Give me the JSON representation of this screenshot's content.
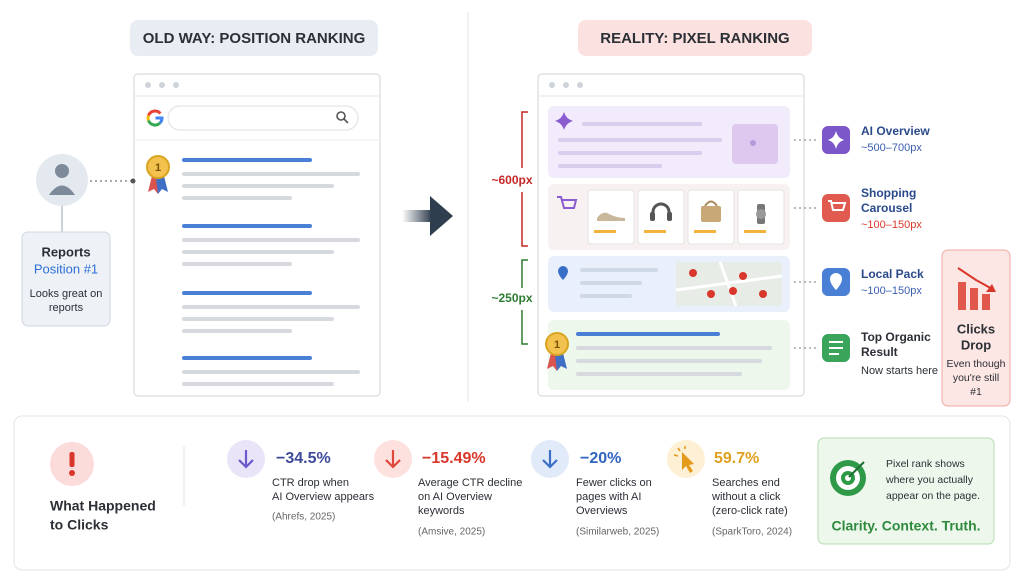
{
  "left": {
    "title": "OLD WAY: POSITION RANKING",
    "reports": {
      "heading": "Reports",
      "position": "Position #1",
      "note": [
        "Looks great on",
        "reports"
      ]
    },
    "medal": "1"
  },
  "right": {
    "title": "REALITY: PIXEL RANKING",
    "brackets": [
      "~600px",
      "~250px"
    ],
    "medal": "1",
    "legend": [
      {
        "label": [
          "AI Overview"
        ],
        "detail": "~500–700px"
      },
      {
        "label": [
          "Shopping",
          "Carousel"
        ],
        "detail": "~100–150px"
      },
      {
        "label": [
          "Local Pack"
        ],
        "detail": "~100–150px"
      },
      {
        "label": [
          "Top Organic",
          "Result"
        ],
        "detail": "Now starts here"
      }
    ],
    "clicks_drop": {
      "title": [
        "Clicks",
        "Drop"
      ],
      "note": [
        "Even though",
        "you're still",
        "#1"
      ]
    }
  },
  "bottom": {
    "title": [
      "What Happened",
      "to Clicks"
    ],
    "stats": [
      {
        "value": "−34.5%",
        "description": [
          "CTR drop when",
          "AI Overview appears"
        ],
        "source": "(Ahrefs, 2025)"
      },
      {
        "value": "−15.49%",
        "description": [
          "Average CTR decline",
          "on AI Overview",
          "keywords"
        ],
        "source": "(Amsive, 2025)"
      },
      {
        "value": "−20%",
        "description": [
          "Fewer clicks on",
          "pages with AI",
          "Overviews"
        ],
        "source": "(Similarweb, 2025)"
      },
      {
        "value": "59.7%",
        "description": [
          "Searches end",
          "without a click",
          "(zero-click rate)"
        ],
        "source": "(SparkToro, 2024)"
      }
    ],
    "summary": {
      "text": [
        "Pixel rank shows",
        "where you actually",
        "appear on the page."
      ],
      "tagline": "Clarity. Context. Truth."
    }
  }
}
